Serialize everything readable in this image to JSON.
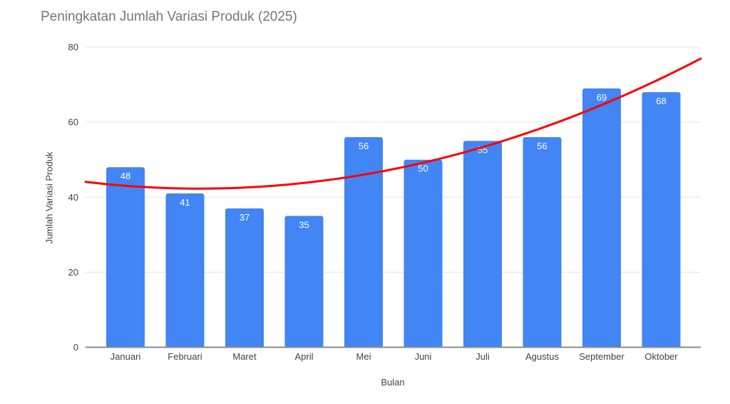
{
  "chart_data": {
    "type": "bar",
    "title": "Peningkatan Jumlah Variasi Produk (2025)",
    "xlabel": "Bulan",
    "ylabel": "Jumlah Variasi Produk",
    "categories": [
      "Januari",
      "Februari",
      "Maret",
      "April",
      "Mei",
      "Juni",
      "Juli",
      "Agustus",
      "September",
      "Oktober"
    ],
    "series": [
      {
        "name": "Jumlah Variasi Produk",
        "values": [
          48,
          41,
          37,
          35,
          56,
          50,
          55,
          56,
          69,
          68
        ],
        "color": "#4285f4",
        "bar_labels_visible": true,
        "bar_label_color": "#ffffff"
      }
    ],
    "ylim": [
      0,
      80
    ],
    "yticks": [
      0,
      20,
      40,
      60,
      80
    ],
    "grid": true,
    "legend_position": "none",
    "trendline": {
      "type": "polynomial",
      "degree": 2,
      "coefficients_abc": [
        0.48864,
        -2.19318,
        44.75
      ],
      "color": "#ff0000",
      "stroke_width": 3
    },
    "colors": {
      "background": "#ffffff",
      "title_text": "#757575",
      "axis_text": "#424242",
      "gridline": "#e6e6e6",
      "baseline": "#8a8a8a"
    }
  }
}
